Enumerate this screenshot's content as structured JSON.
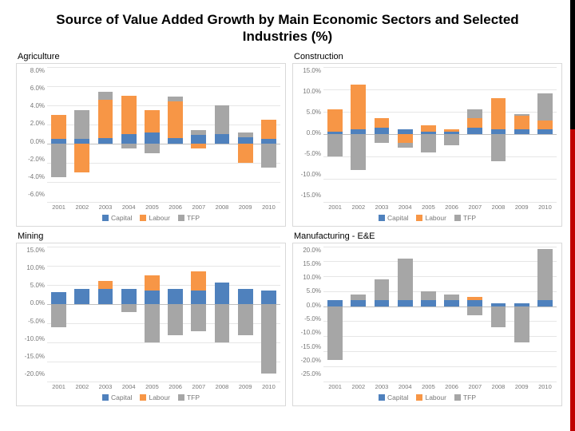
{
  "title": "Source of Value Added Growth  by Main Economic Sectors and Selected Industries (%)",
  "series_names": [
    "Capital",
    "Labour",
    "TFP"
  ],
  "series_colors": [
    "#4f81bd",
    "#f79646",
    "#a6a6a6"
  ],
  "grid_color": "#e6e6e6",
  "axis_color": "#bfbfbf",
  "text_color": "#777777",
  "years": [
    "2001",
    "2002",
    "2003",
    "2004",
    "2005",
    "2006",
    "2007",
    "2008",
    "2009",
    "2010"
  ],
  "panels": [
    {
      "title": "Agriculture",
      "ymin": -6,
      "ymax": 8,
      "ystep": 2,
      "ysuffix": ".0%",
      "data": {
        "Capital": [
          0.5,
          0.5,
          0.6,
          1.0,
          1.2,
          0.6,
          0.9,
          1.0,
          0.7,
          0.5
        ],
        "Labour": [
          2.5,
          -3.0,
          4.0,
          4.0,
          2.3,
          3.8,
          -0.5,
          0.0,
          -2.0,
          2.0
        ],
        "TFP": [
          -3.5,
          3.0,
          0.8,
          -0.5,
          -1.0,
          0.5,
          0.5,
          3.0,
          0.5,
          -2.5
        ]
      }
    },
    {
      "title": "Construction",
      "ymin": -15,
      "ymax": 15,
      "ystep": 5,
      "ysuffix": ".0%",
      "data": {
        "Capital": [
          0.5,
          1.0,
          1.5,
          1.0,
          0.5,
          0.5,
          1.5,
          1.0,
          1.0,
          1.0
        ],
        "Labour": [
          5.0,
          10.0,
          2.0,
          -2.0,
          1.5,
          0.5,
          2.0,
          7.0,
          3.0,
          2.0
        ],
        "TFP": [
          -5.0,
          -8.0,
          -2.0,
          -1.0,
          -4.0,
          -2.5,
          2.0,
          -6.0,
          0.5,
          6.0
        ]
      }
    },
    {
      "title": "Mining",
      "ymin": -20,
      "ymax": 15,
      "ystep": 5,
      "ysuffix": ".0%",
      "data": {
        "Capital": [
          3.0,
          4.0,
          4.0,
          4.0,
          3.5,
          4.0,
          3.5,
          5.5,
          4.0,
          3.5
        ],
        "Labour": [
          0.0,
          0.0,
          2.0,
          0.0,
          4.0,
          0.0,
          5.0,
          0.0,
          0.0,
          0.0
        ],
        "TFP": [
          -6.0,
          0.0,
          0.0,
          -2.0,
          -10.0,
          -8.0,
          -7.0,
          -10.0,
          -8.0,
          -18.0
        ]
      }
    },
    {
      "title": "Manufacturing - E&E",
      "ymin": -25,
      "ymax": 20,
      "ystep": 5,
      "ysuffix": ".0%",
      "data": {
        "Capital": [
          2.0,
          2.0,
          2.0,
          2.0,
          2.0,
          2.0,
          2.0,
          1.0,
          1.0,
          2.0
        ],
        "Labour": [
          0.0,
          0.0,
          0.0,
          0.0,
          0.0,
          0.0,
          1.0,
          0.0,
          0.0,
          0.0
        ],
        "TFP": [
          -18.0,
          2.0,
          7.0,
          14.0,
          3.0,
          2.0,
          -3.0,
          -7.0,
          -12.0,
          17.0
        ]
      }
    }
  ]
}
